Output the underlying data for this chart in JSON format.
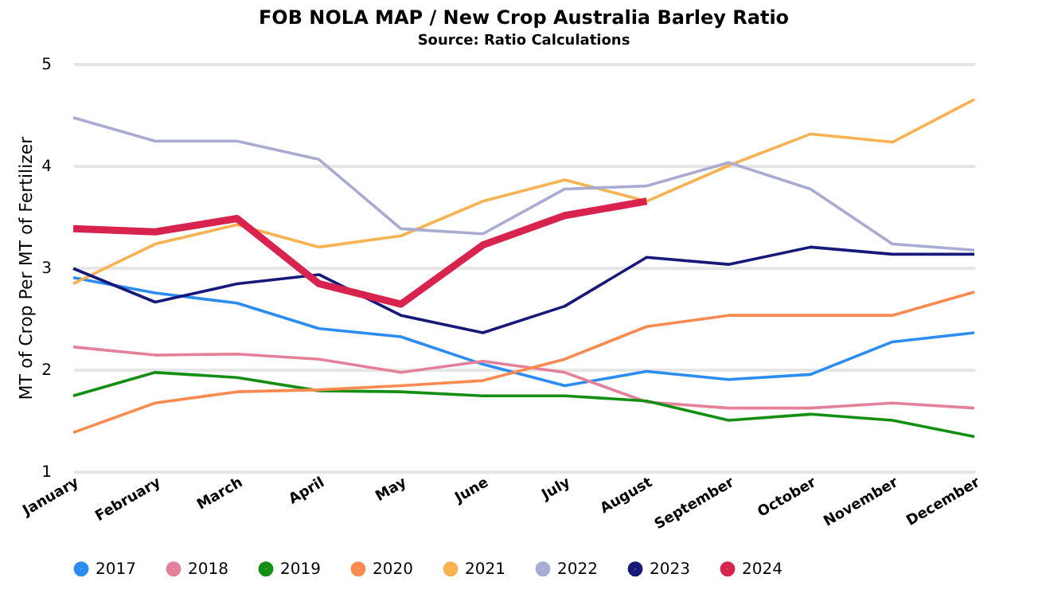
{
  "chart_data": {
    "type": "line",
    "title": "FOB NOLA MAP / New Crop Australia Barley Ratio",
    "subtitle": "Source: Ratio Calculations",
    "ylabel": "MT of Crop Per MT of Fertilizer",
    "categories": [
      "January",
      "February",
      "March",
      "April",
      "May",
      "June",
      "July",
      "August",
      "September",
      "October",
      "November",
      "December"
    ],
    "ylim": [
      1,
      5
    ],
    "yticks": [
      1,
      2,
      3,
      4,
      5
    ],
    "grid": "y",
    "legend": "bottom",
    "marker": "none",
    "line_style": "solid",
    "series": [
      {
        "name": "2017",
        "color": "#2b8cf2",
        "values": [
          2.9,
          2.75,
          2.65,
          2.4,
          2.32,
          2.05,
          1.84,
          1.98,
          1.9,
          1.95,
          2.27,
          2.36
        ]
      },
      {
        "name": "2018",
        "color": "#e5809a",
        "values": [
          2.22,
          2.14,
          2.15,
          2.1,
          1.97,
          2.08,
          1.97,
          1.68,
          1.62,
          1.62,
          1.67,
          1.62
        ]
      },
      {
        "name": "2019",
        "color": "#138f13",
        "values": [
          1.74,
          1.97,
          1.92,
          1.79,
          1.78,
          1.74,
          1.74,
          1.69,
          1.5,
          1.56,
          1.5,
          1.34
        ]
      },
      {
        "name": "2020",
        "color": "#fb8a50",
        "values": [
          1.38,
          1.67,
          1.78,
          1.8,
          1.84,
          1.89,
          2.1,
          2.42,
          2.53,
          2.53,
          2.53,
          2.76
        ]
      },
      {
        "name": "2021",
        "color": "#f9b251",
        "values": [
          2.84,
          3.23,
          3.42,
          3.2,
          3.31,
          3.65,
          3.86,
          3.65,
          4.0,
          4.31,
          4.23,
          4.65
        ]
      },
      {
        "name": "2022",
        "color": "#a9abd2",
        "values": [
          4.47,
          4.24,
          4.24,
          4.06,
          3.38,
          3.33,
          3.77,
          3.8,
          4.03,
          3.77,
          3.23,
          3.17
        ]
      },
      {
        "name": "2023",
        "color": "#16197a",
        "values": [
          2.99,
          2.66,
          2.84,
          2.93,
          2.53,
          2.36,
          2.62,
          3.1,
          3.03,
          3.2,
          3.13,
          3.13
        ]
      },
      {
        "name": "2024",
        "color": "#d8234f",
        "values": [
          3.38,
          3.35,
          3.48,
          2.84,
          2.64,
          3.22,
          3.51,
          3.65,
          null,
          null,
          null,
          null
        ]
      }
    ]
  }
}
